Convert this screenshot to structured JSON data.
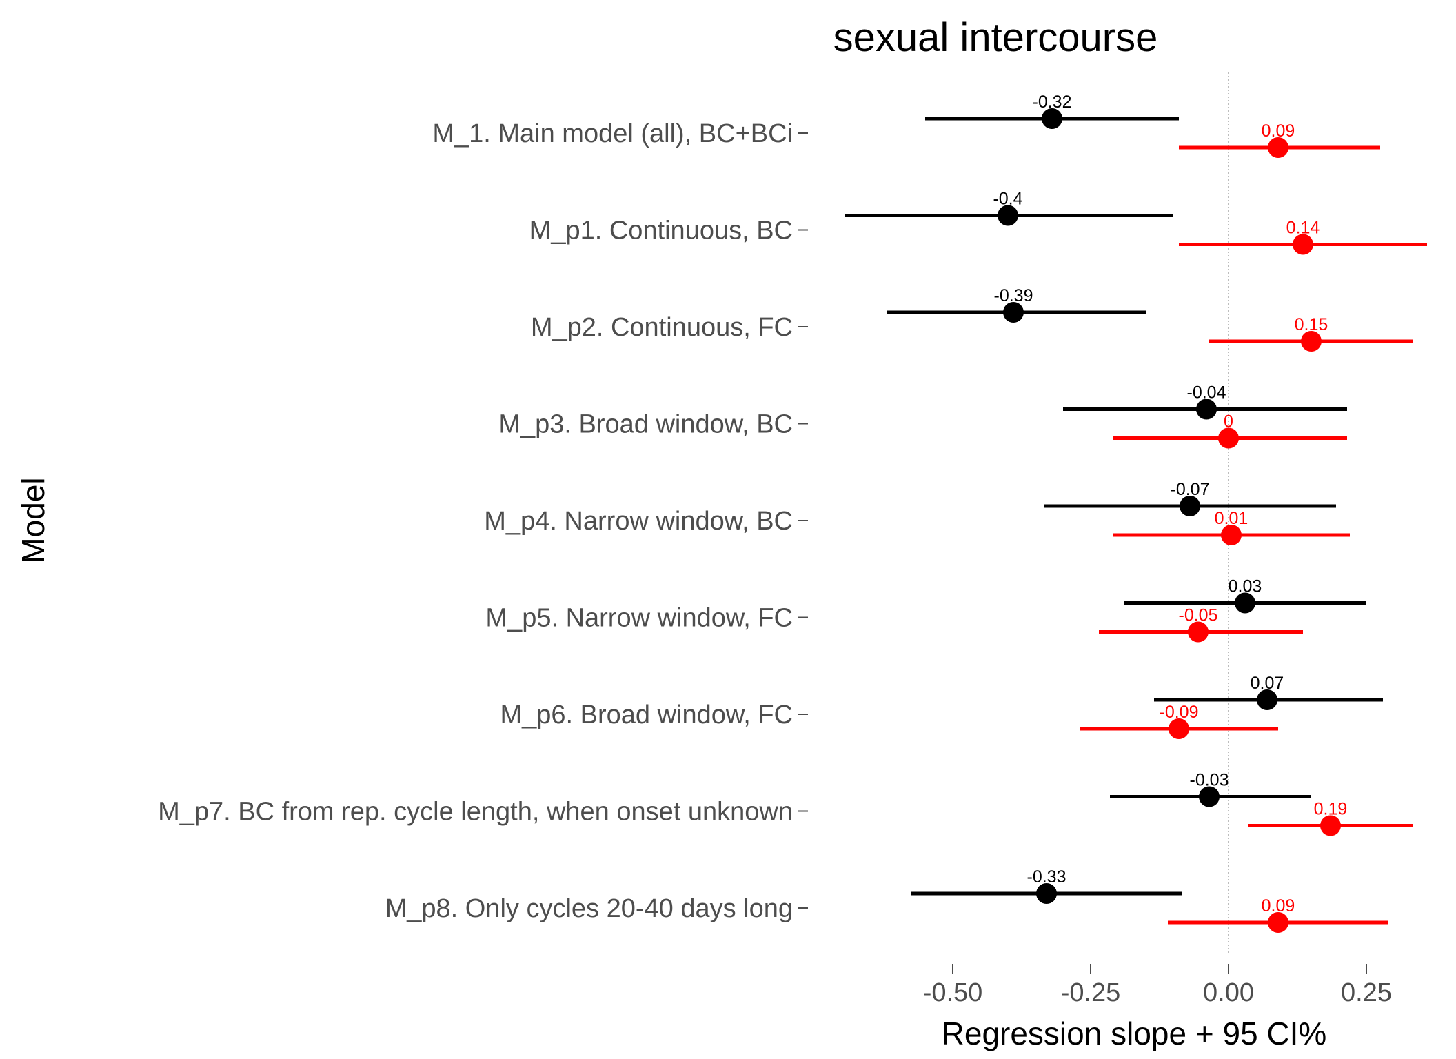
{
  "chart_data": {
    "type": "forest",
    "title": "sexual intercourse",
    "xlabel": "Regression slope + 95 CI%",
    "ylabel": "Model",
    "xlim": [
      -0.5,
      0.25
    ],
    "xticks": [
      "-0.50",
      "-0.25",
      "0.00",
      "0.25"
    ],
    "xtick_values": [
      -0.5,
      -0.25,
      0.0,
      0.25
    ],
    "reference_line": 0,
    "colors": {
      "black_series": "#000000",
      "red_series": "#ff0000",
      "reference": "#bdbdbd",
      "tick": "#4d4d4d"
    },
    "models": [
      {
        "label": "M_1. Main model (all), BC+BCi",
        "black": {
          "est": -0.32,
          "lo": -0.55,
          "hi": -0.09,
          "label": "-0.32"
        },
        "red": {
          "est": 0.09,
          "lo": -0.09,
          "hi": 0.275,
          "label": "0.09"
        }
      },
      {
        "label": "M_p1. Continuous, BC",
        "black": {
          "est": -0.4,
          "lo": -0.695,
          "hi": -0.1,
          "label": "-0.4"
        },
        "red": {
          "est": 0.135,
          "lo": -0.09,
          "hi": 0.36,
          "label": "0.14"
        }
      },
      {
        "label": "M_p2. Continuous, FC",
        "black": {
          "est": -0.39,
          "lo": -0.62,
          "hi": -0.15,
          "label": "-0.39"
        },
        "red": {
          "est": 0.15,
          "lo": -0.035,
          "hi": 0.335,
          "label": "0.15"
        }
      },
      {
        "label": "M_p3. Broad window, BC",
        "black": {
          "est": -0.04,
          "lo": -0.3,
          "hi": 0.215,
          "label": "-0.04"
        },
        "red": {
          "est": 0.0,
          "lo": -0.21,
          "hi": 0.215,
          "label": "0"
        }
      },
      {
        "label": "M_p4. Narrow window, BC",
        "black": {
          "est": -0.07,
          "lo": -0.335,
          "hi": 0.195,
          "label": "-0.07"
        },
        "red": {
          "est": 0.005,
          "lo": -0.21,
          "hi": 0.22,
          "label": "0.01"
        }
      },
      {
        "label": "M_p5. Narrow window, FC",
        "black": {
          "est": 0.03,
          "lo": -0.19,
          "hi": 0.25,
          "label": "0.03"
        },
        "red": {
          "est": -0.055,
          "lo": -0.235,
          "hi": 0.135,
          "label": "-0.05"
        }
      },
      {
        "label": "M_p6. Broad window, FC",
        "black": {
          "est": 0.07,
          "lo": -0.135,
          "hi": 0.28,
          "label": "0.07"
        },
        "red": {
          "est": -0.09,
          "lo": -0.27,
          "hi": 0.09,
          "label": "-0.09"
        }
      },
      {
        "label": "M_p7. BC from rep. cycle length, when onset unknown",
        "black": {
          "est": -0.035,
          "lo": -0.215,
          "hi": 0.15,
          "label": "-0.03"
        },
        "red": {
          "est": 0.185,
          "lo": 0.035,
          "hi": 0.335,
          "label": "0.19"
        }
      },
      {
        "label": "M_p8. Only cycles 20-40 days long",
        "black": {
          "est": -0.33,
          "lo": -0.575,
          "hi": -0.085,
          "label": "-0.33"
        },
        "red": {
          "est": 0.09,
          "lo": -0.11,
          "hi": 0.29,
          "label": "0.09"
        }
      }
    ]
  }
}
